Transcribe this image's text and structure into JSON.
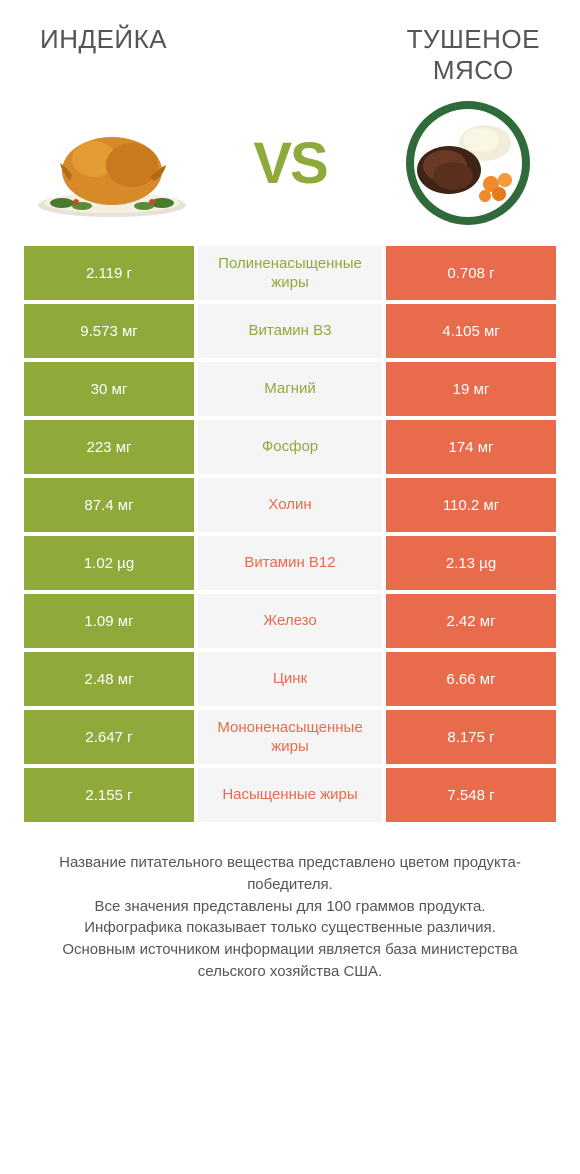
{
  "header": {
    "left_title": "ИНДЕЙКА",
    "right_title_line1": "ТУШЕНОЕ",
    "right_title_line2": "МЯСО"
  },
  "vs": "VS",
  "colors": {
    "green": "#8faa3a",
    "orange": "#e86b4c",
    "mid_bg": "#f5f5f5",
    "label_green": "#8faa3a",
    "label_orange": "#e86b4c"
  },
  "rows": [
    {
      "left": "2.119 г",
      "label": "Полиненасыщенные жиры",
      "right": "0.708 г",
      "winner": "left"
    },
    {
      "left": "9.573 мг",
      "label": "Витамин B3",
      "right": "4.105 мг",
      "winner": "left"
    },
    {
      "left": "30 мг",
      "label": "Магний",
      "right": "19 мг",
      "winner": "left"
    },
    {
      "left": "223 мг",
      "label": "Фосфор",
      "right": "174 мг",
      "winner": "left"
    },
    {
      "left": "87.4 мг",
      "label": "Холин",
      "right": "110.2 мг",
      "winner": "right"
    },
    {
      "left": "1.02 µg",
      "label": "Витамин B12",
      "right": "2.13 µg",
      "winner": "right"
    },
    {
      "left": "1.09 мг",
      "label": "Железо",
      "right": "2.42 мг",
      "winner": "right"
    },
    {
      "left": "2.48 мг",
      "label": "Цинк",
      "right": "6.66 мг",
      "winner": "right"
    },
    {
      "left": "2.647 г",
      "label": "Мононенасыщенные жиры",
      "right": "8.175 г",
      "winner": "right"
    },
    {
      "left": "2.155 г",
      "label": "Насыщенные жиры",
      "right": "7.548 г",
      "winner": "right"
    }
  ],
  "footer": {
    "l1": "Название питательного вещества представлено цветом продукта-победителя.",
    "l2": "Все значения представлены для 100 граммов продукта.",
    "l3": "Инфографика показывает только существенные различия.",
    "l4": "Основным источником информации является база министерства сельского хозяйства США."
  },
  "plate": {
    "turkey_body": "#d68a2a",
    "turkey_dark": "#b36b17",
    "garnish": "#4a7a2f",
    "plate_rim": "#2f6b3a",
    "plate_inner": "#ffffff",
    "meat": "#6b3a26",
    "gravy": "#3f2416",
    "mash": "#f2edd8",
    "carrot": "#f08a2c"
  }
}
